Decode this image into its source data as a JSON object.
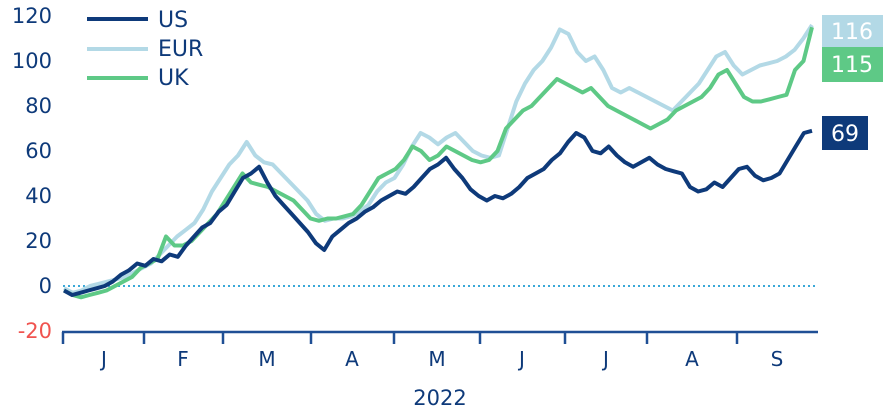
{
  "chart_data": {
    "type": "line",
    "title": "",
    "xlabel": "2022",
    "ylabel": "",
    "ylim": [
      -20,
      120
    ],
    "yticks": [
      "120",
      "100",
      "80",
      "60",
      "40",
      "20",
      "0",
      "-20"
    ],
    "ytick_values": [
      120,
      100,
      80,
      60,
      40,
      20,
      0,
      -20
    ],
    "xticks": [
      "J",
      "F",
      "M",
      "A",
      "M",
      "J",
      "J",
      "A",
      "S"
    ],
    "grid": false,
    "zero_line": "dotted",
    "legend_position": "top-left",
    "legend": [
      "US",
      "EUR",
      "UK"
    ],
    "series": [
      {
        "name": "US",
        "color": "#0e3a7a",
        "end_label": "69",
        "values": [
          -2,
          -4,
          -3,
          -2,
          -1,
          0,
          2,
          5,
          7,
          10,
          9,
          12,
          11,
          14,
          13,
          18,
          22,
          26,
          28,
          33,
          36,
          42,
          48,
          50,
          53,
          46,
          40,
          36,
          32,
          28,
          24,
          19,
          16,
          22,
          25,
          28,
          30,
          33,
          35,
          38,
          40,
          42,
          41,
          44,
          48,
          52,
          54,
          57,
          52,
          48,
          43,
          40,
          38,
          40,
          39,
          41,
          44,
          48,
          50,
          52,
          56,
          59,
          64,
          68,
          66,
          60,
          59,
          62,
          58,
          55,
          53,
          55,
          57,
          54,
          52,
          51,
          50,
          44,
          42,
          43,
          46,
          44,
          48,
          52,
          53,
          49,
          47,
          48,
          50,
          56,
          62,
          68,
          69
        ]
      },
      {
        "name": "EUR",
        "color": "#b3d9e6",
        "end_label": "116",
        "values": [
          -1,
          -3,
          -2,
          0,
          1,
          2,
          3,
          4,
          6,
          8,
          10,
          14,
          18,
          22,
          25,
          28,
          34,
          42,
          48,
          54,
          58,
          64,
          58,
          55,
          54,
          50,
          46,
          42,
          38,
          32,
          29,
          30,
          30,
          31,
          33,
          36,
          42,
          46,
          48,
          54,
          62,
          68,
          66,
          63,
          66,
          68,
          64,
          60,
          58,
          57,
          58,
          70,
          82,
          90,
          96,
          100,
          106,
          114,
          112,
          104,
          100,
          102,
          96,
          88,
          86,
          88,
          86,
          84,
          82,
          80,
          78,
          82,
          86,
          90,
          96,
          102,
          104,
          98,
          94,
          96,
          98,
          99,
          100,
          102,
          105,
          110,
          116
        ]
      },
      {
        "name": "UK",
        "color": "#5ec986",
        "end_label": "115",
        "values": [
          -2,
          -4,
          -5,
          -4,
          -3,
          -2,
          0,
          2,
          4,
          8,
          10,
          12,
          22,
          18,
          18,
          20,
          24,
          28,
          32,
          38,
          44,
          50,
          46,
          45,
          44,
          42,
          40,
          38,
          34,
          30,
          29,
          30,
          30,
          31,
          32,
          36,
          42,
          48,
          50,
          52,
          56,
          62,
          60,
          56,
          58,
          62,
          60,
          58,
          56,
          55,
          56,
          60,
          70,
          74,
          78,
          80,
          84,
          88,
          92,
          90,
          88,
          86,
          88,
          84,
          80,
          78,
          76,
          74,
          72,
          70,
          72,
          74,
          78,
          80,
          82,
          84,
          88,
          94,
          96,
          90,
          84,
          82,
          82,
          83,
          84,
          85,
          96,
          100,
          115
        ]
      }
    ]
  }
}
